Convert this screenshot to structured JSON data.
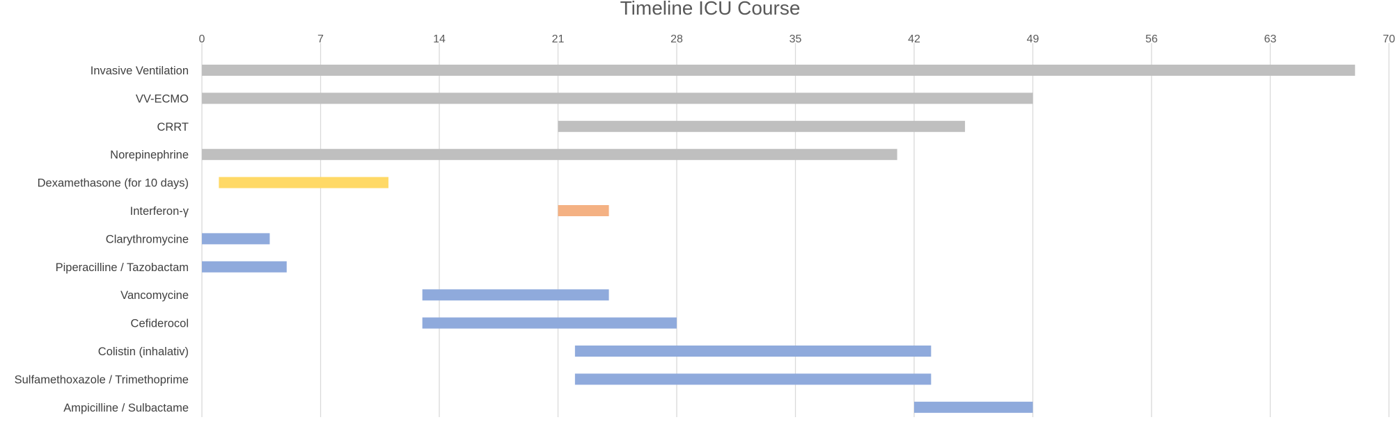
{
  "chart_data": {
    "type": "bar",
    "orientation": "horizontal",
    "title": "Timeline ICU Course",
    "xlabel": "",
    "ylabel": "",
    "xlim": [
      0,
      70
    ],
    "xticks": [
      0,
      7,
      14,
      21,
      28,
      35,
      42,
      49,
      56,
      63,
      70
    ],
    "x_axis_position": "top",
    "grid": "vertical",
    "legend": "none",
    "categories": [
      "Invasive Ventilation",
      "VV-ECMO",
      "CRRT",
      "Norepinephrine",
      "Dexamethasone (for 10 days)",
      "Interferon-γ",
      "Clarythromycine",
      "Piperacilline / Tazobactam",
      "Vancomycine",
      "Cefiderocol",
      "Colistin (inhalativ)",
      "Sulfamethoxazole / Trimethoprime",
      "Ampicilline / Sulbactame"
    ],
    "bars": [
      {
        "category": "Invasive Ventilation",
        "start": 0,
        "end": 68,
        "color": "#bfbfbf"
      },
      {
        "category": "VV-ECMO",
        "start": 0,
        "end": 49,
        "color": "#bfbfbf"
      },
      {
        "category": "CRRT",
        "start": 21,
        "end": 45,
        "color": "#bfbfbf"
      },
      {
        "category": "Norepinephrine",
        "start": 0,
        "end": 41,
        "color": "#bfbfbf"
      },
      {
        "category": "Dexamethasone (for 10 days)",
        "start": 1,
        "end": 11,
        "color": "#ffd966"
      },
      {
        "category": "Interferon-γ",
        "start": 21,
        "end": 24,
        "color": "#f4b183"
      },
      {
        "category": "Clarythromycine",
        "start": 0,
        "end": 4,
        "color": "#8faadc"
      },
      {
        "category": "Piperacilline / Tazobactam",
        "start": 0,
        "end": 5,
        "color": "#8faadc"
      },
      {
        "category": "Vancomycine",
        "start": 13,
        "end": 24,
        "color": "#8faadc"
      },
      {
        "category": "Cefiderocol",
        "start": 13,
        "end": 28,
        "color": "#8faadc"
      },
      {
        "category": "Colistin (inhalativ)",
        "start": 22,
        "end": 43,
        "color": "#8faadc"
      },
      {
        "category": "Sulfamethoxazole / Trimethoprime",
        "start": 22,
        "end": 43,
        "color": "#8faadc"
      },
      {
        "category": "Ampicilline / Sulbactame",
        "start": 42,
        "end": 49,
        "color": "#8faadc"
      }
    ]
  }
}
